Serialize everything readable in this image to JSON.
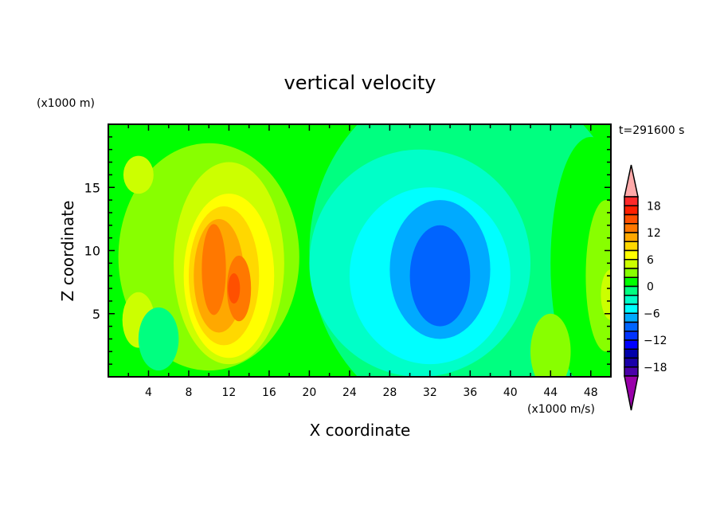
{
  "chart_data": {
    "type": "heatmap",
    "title": "vertical velocity",
    "xlabel": "X coordinate",
    "ylabel": "Z coordinate",
    "y_unit_label": "(x1000 m)",
    "colorbar_unit_label": "(x1000 m/s)",
    "time_label": "t=291600 s",
    "xlim": [
      0,
      50
    ],
    "ylim": [
      0,
      20
    ],
    "x_ticks": [
      4,
      8,
      12,
      16,
      20,
      24,
      28,
      32,
      36,
      40,
      44,
      48
    ],
    "y_ticks": [
      5,
      10,
      15
    ],
    "levels": [
      -20,
      -18,
      -16,
      -14,
      -12,
      -10,
      -8,
      -6,
      -4,
      -2,
      0,
      2,
      4,
      6,
      8,
      10,
      12,
      14,
      16,
      18,
      20
    ],
    "colorbar_ticks": [
      18,
      12,
      6,
      0,
      -6,
      -12,
      -18
    ],
    "level_colors": [
      "#4b00aa",
      "#1a00aa",
      "#0000aa",
      "#0000ff",
      "#0032ff",
      "#0064ff",
      "#00aaff",
      "#00ffff",
      "#00ffc8",
      "#00ff80",
      "#00ff00",
      "#88ff00",
      "#ccff00",
      "#ffff00",
      "#ffd800",
      "#ffa800",
      "#ff7800",
      "#ff5000",
      "#ff2000",
      "#ff2a2a"
    ],
    "under_color": "#9900aa",
    "over_color": "#ffaaaa",
    "background_value": 1,
    "features": [
      {
        "x": 36,
        "z": 10,
        "rx": 16,
        "rz": 14,
        "value": -1
      },
      {
        "x": 10,
        "z": 9.5,
        "rx": 9,
        "rz": 9,
        "value": 3
      },
      {
        "x": 3,
        "z": 16,
        "rx": 1.5,
        "rz": 1.5,
        "value": 5
      },
      {
        "x": 3,
        "z": 4.5,
        "rx": 1.6,
        "rz": 2.2,
        "value": 5
      },
      {
        "x": 5,
        "z": 3,
        "rx": 2,
        "rz": 2.5,
        "value": -1
      },
      {
        "x": 12,
        "z": 9,
        "rx": 5.5,
        "rz": 8,
        "value": 5
      },
      {
        "x": 12,
        "z": 8,
        "rx": 4.5,
        "rz": 6.5,
        "value": 7
      },
      {
        "x": 11.5,
        "z": 8,
        "rx": 3.5,
        "rz": 5.5,
        "value": 9
      },
      {
        "x": 11,
        "z": 8,
        "rx": 2.5,
        "rz": 4.5,
        "value": 11
      },
      {
        "x": 10.5,
        "z": 8.5,
        "rx": 1.2,
        "rz": 3.6,
        "value": 13
      },
      {
        "x": 13,
        "z": 7,
        "rx": 1.2,
        "rz": 2.6,
        "value": 13
      },
      {
        "x": 12.5,
        "z": 7,
        "rx": 0.6,
        "rz": 1.2,
        "value": 15
      },
      {
        "x": 31,
        "z": 9,
        "rx": 11,
        "rz": 9,
        "value": -3
      },
      {
        "x": 32,
        "z": 8,
        "rx": 8,
        "rz": 7,
        "value": -5
      },
      {
        "x": 33,
        "z": 8.5,
        "rx": 5,
        "rz": 5.5,
        "value": -7
      },
      {
        "x": 33,
        "z": 8,
        "rx": 3,
        "rz": 4,
        "value": -9
      },
      {
        "x": 48,
        "z": 9,
        "rx": 4,
        "rz": 10,
        "value": 1
      },
      {
        "x": 49.5,
        "z": 8,
        "rx": 2,
        "rz": 6,
        "value": 3
      },
      {
        "x": 50,
        "z": 6.5,
        "rx": 1,
        "rz": 2,
        "value": 5
      },
      {
        "x": 44,
        "z": 2,
        "rx": 2,
        "rz": 3,
        "value": 3
      }
    ]
  }
}
